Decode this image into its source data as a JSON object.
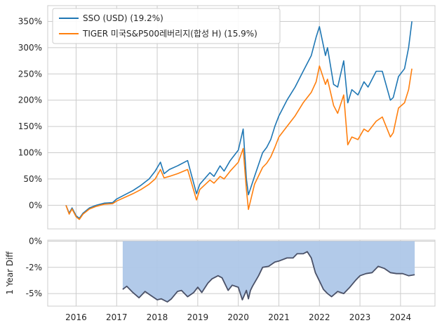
{
  "chart_data": [
    {
      "type": "line",
      "legend": {
        "placement": "upper-left"
      },
      "grid": true,
      "ylim": [
        -0.45,
        3.8
      ],
      "xlim": [
        2015.3,
        2024.85
      ],
      "ytick_labels": [
        {
          "v": 0.0,
          "label": "0%"
        },
        {
          "v": 0.5,
          "label": "50%"
        },
        {
          "v": 1.0,
          "label": "100%"
        },
        {
          "v": 1.5,
          "label": "150%"
        },
        {
          "v": 2.0,
          "label": "200%"
        },
        {
          "v": 2.5,
          "label": "250%"
        },
        {
          "v": 3.0,
          "label": "300%"
        },
        {
          "v": 3.5,
          "label": "350%"
        }
      ],
      "series": [
        {
          "name": "SSO (USD)",
          "annual_return_label": "(19.2%)",
          "color": "#1f77b4",
          "x": [
            2015.75,
            2015.83,
            2015.9,
            2016.0,
            2016.08,
            2016.17,
            2016.33,
            2016.5,
            2016.7,
            2016.9,
            2017.0,
            2017.2,
            2017.4,
            2017.6,
            2017.8,
            2017.95,
            2018.08,
            2018.17,
            2018.3,
            2018.5,
            2018.75,
            2018.97,
            2019.05,
            2019.3,
            2019.4,
            2019.55,
            2019.65,
            2019.8,
            2020.0,
            2020.12,
            2020.2,
            2020.25,
            2020.4,
            2020.6,
            2020.7,
            2020.8,
            2020.9,
            2021.0,
            2021.2,
            2021.4,
            2021.6,
            2021.8,
            2021.92,
            2022.0,
            2022.15,
            2022.2,
            2022.35,
            2022.45,
            2022.6,
            2022.7,
            2022.8,
            2022.95,
            2023.1,
            2023.2,
            2023.4,
            2023.55,
            2023.75,
            2023.82,
            2023.95,
            2024.1,
            2024.2,
            2024.28
          ],
          "values": [
            0.0,
            -0.15,
            -0.05,
            -0.2,
            -0.25,
            -0.15,
            -0.05,
            0.0,
            0.04,
            0.05,
            0.12,
            0.2,
            0.28,
            0.38,
            0.5,
            0.65,
            0.82,
            0.6,
            0.68,
            0.75,
            0.85,
            0.22,
            0.4,
            0.62,
            0.55,
            0.75,
            0.65,
            0.85,
            1.05,
            1.45,
            0.5,
            0.2,
            0.55,
            1.0,
            1.1,
            1.25,
            1.5,
            1.7,
            2.0,
            2.25,
            2.55,
            2.85,
            3.2,
            3.4,
            2.85,
            3.0,
            2.3,
            2.25,
            2.75,
            1.95,
            2.2,
            2.1,
            2.35,
            2.25,
            2.55,
            2.55,
            2.0,
            2.05,
            2.45,
            2.6,
            3.0,
            3.5
          ]
        },
        {
          "name": "TIGER 미국S&P500레버리지(합성 H)",
          "annual_return_label": "(15.9%)",
          "color": "#ff7f0e",
          "x": [
            2015.75,
            2015.83,
            2015.9,
            2016.0,
            2016.08,
            2016.17,
            2016.33,
            2016.5,
            2016.7,
            2016.9,
            2017.0,
            2017.2,
            2017.4,
            2017.6,
            2017.8,
            2017.95,
            2018.08,
            2018.17,
            2018.3,
            2018.5,
            2018.75,
            2018.97,
            2019.05,
            2019.3,
            2019.4,
            2019.55,
            2019.65,
            2019.8,
            2020.0,
            2020.12,
            2020.2,
            2020.25,
            2020.4,
            2020.6,
            2020.7,
            2020.8,
            2020.9,
            2021.0,
            2021.2,
            2021.4,
            2021.6,
            2021.8,
            2021.92,
            2022.0,
            2022.15,
            2022.2,
            2022.35,
            2022.45,
            2022.6,
            2022.7,
            2022.8,
            2022.95,
            2023.1,
            2023.2,
            2023.4,
            2023.55,
            2023.75,
            2023.82,
            2023.95,
            2024.1,
            2024.2,
            2024.28
          ],
          "values": [
            0.0,
            -0.17,
            -0.07,
            -0.22,
            -0.27,
            -0.17,
            -0.07,
            -0.02,
            0.02,
            0.03,
            0.08,
            0.15,
            0.22,
            0.3,
            0.4,
            0.5,
            0.68,
            0.52,
            0.55,
            0.6,
            0.68,
            0.1,
            0.3,
            0.48,
            0.42,
            0.55,
            0.5,
            0.65,
            0.82,
            1.08,
            0.3,
            -0.08,
            0.4,
            0.72,
            0.8,
            0.92,
            1.1,
            1.3,
            1.5,
            1.7,
            1.95,
            2.15,
            2.35,
            2.65,
            2.3,
            2.4,
            1.9,
            1.75,
            2.1,
            1.15,
            1.3,
            1.25,
            1.45,
            1.4,
            1.6,
            1.68,
            1.3,
            1.38,
            1.85,
            1.95,
            2.2,
            2.6
          ]
        }
      ]
    },
    {
      "type": "area",
      "ylabel": "1 Year Diff",
      "grid": true,
      "ylim": [
        -0.062,
        0.001
      ],
      "xlim": [
        2015.3,
        2024.85
      ],
      "ytick_labels": [
        {
          "v": 0.0,
          "label": "0%"
        },
        {
          "v": -0.025,
          "label": "-2%"
        },
        {
          "v": -0.05,
          "label": "-5%"
        }
      ],
      "xtick_labels": [
        {
          "v": 2016,
          "label": "2016"
        },
        {
          "v": 2017,
          "label": "2017"
        },
        {
          "v": 2018,
          "label": "2018"
        },
        {
          "v": 2019,
          "label": "2019"
        },
        {
          "v": 2020,
          "label": "2020"
        },
        {
          "v": 2021,
          "label": "2021"
        },
        {
          "v": 2022,
          "label": "2022"
        },
        {
          "v": 2023,
          "label": "2023"
        },
        {
          "v": 2024,
          "label": "2024"
        }
      ],
      "fill_color": "#aec7e8",
      "line_color": "#4a5168",
      "series": [
        {
          "x": [
            2017.15,
            2017.25,
            2017.4,
            2017.55,
            2017.7,
            2017.85,
            2018.0,
            2018.1,
            2018.25,
            2018.35,
            2018.5,
            2018.6,
            2018.75,
            2018.9,
            2019.0,
            2019.1,
            2019.25,
            2019.35,
            2019.5,
            2019.6,
            2019.75,
            2019.85,
            2020.0,
            2020.1,
            2020.2,
            2020.25,
            2020.3,
            2020.35,
            2020.5,
            2020.6,
            2020.75,
            2020.9,
            2021.0,
            2021.2,
            2021.35,
            2021.45,
            2021.6,
            2021.7,
            2021.8,
            2021.9,
            2022.0,
            2022.1,
            2022.2,
            2022.3,
            2022.45,
            2022.6,
            2022.75,
            2022.9,
            2023.0,
            2023.15,
            2023.3,
            2023.45,
            2023.6,
            2023.75,
            2023.9,
            2024.05,
            2024.2,
            2024.35
          ],
          "values": [
            -0.046,
            -0.043,
            -0.049,
            -0.054,
            -0.048,
            -0.052,
            -0.056,
            -0.055,
            -0.058,
            -0.055,
            -0.048,
            -0.047,
            -0.053,
            -0.049,
            -0.044,
            -0.049,
            -0.04,
            -0.036,
            -0.033,
            -0.035,
            -0.047,
            -0.042,
            -0.044,
            -0.056,
            -0.047,
            -0.055,
            -0.047,
            -0.043,
            -0.033,
            -0.025,
            -0.024,
            -0.02,
            -0.019,
            -0.016,
            -0.016,
            -0.012,
            -0.012,
            -0.01,
            -0.016,
            -0.03,
            -0.038,
            -0.046,
            -0.05,
            -0.053,
            -0.048,
            -0.05,
            -0.044,
            -0.037,
            -0.033,
            -0.031,
            -0.03,
            -0.024,
            -0.026,
            -0.03,
            -0.031,
            -0.031,
            -0.033,
            -0.032
          ]
        }
      ]
    }
  ]
}
